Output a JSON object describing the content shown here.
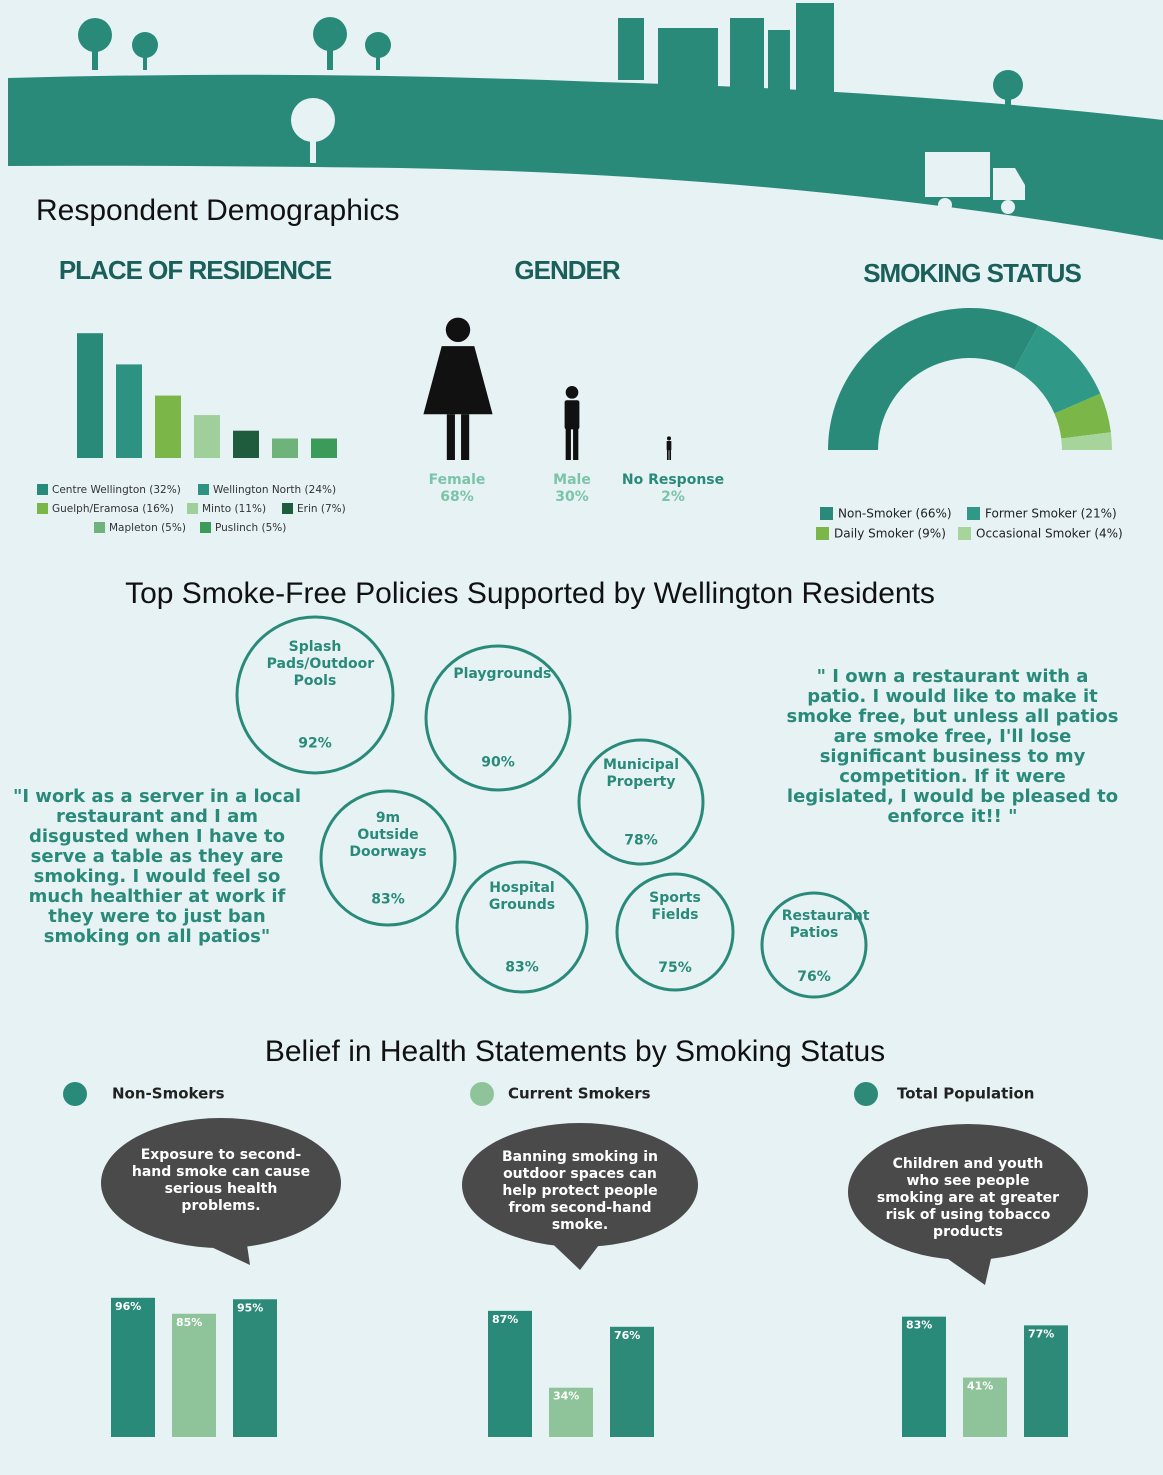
{
  "heading": "Respondent Demographics",
  "quotes": [
    "\"I work as a server in a local restaurant and I am disgusted when I have to serve a table as they are smoking. I would feel so much healthier at work if they were to just ban smoking on all patios\"",
    "\" I own a restaurant with a patio. I would like to make it smoke free, but unless all patios are smoke free, I'll lose significant business to my competition. If it were legislated, I would be pleased to enforce it!! \""
  ],
  "chart_data": [
    {
      "type": "bar",
      "title": "PLACE OF RESIDENCE",
      "categories": [
        "Centre Wellington (32%)",
        "Wellington North (24%)",
        "Guelph/Eramosa (16%)",
        "Minto (11%)",
        "Erin (7%)",
        "Mapleton (5%)",
        "Puslinch (5%)"
      ],
      "values": [
        32,
        24,
        16,
        11,
        7,
        5,
        5
      ],
      "colors": [
        "#2a8a7a",
        "#2e9282",
        "#7ab648",
        "#9fcf9a",
        "#1f5c3e",
        "#6db37a",
        "#3d9b5a"
      ]
    },
    {
      "type": "pictogram",
      "title": "GENDER",
      "categories": [
        "Female",
        "Male",
        "No Response"
      ],
      "values": [
        68,
        30,
        2
      ],
      "value_labels": [
        "68%",
        "30%",
        "2%"
      ],
      "color": "#111111"
    },
    {
      "type": "semidonut",
      "title": "SMOKING STATUS",
      "categories": [
        "Non-Smoker (66%)",
        "Former Smoker (21%)",
        "Daily Smoker (9%)",
        "Occasional Smoker (4%)"
      ],
      "values": [
        66,
        21,
        9,
        4
      ],
      "colors": [
        "#2a8a7a",
        "#2f9886",
        "#7ab648",
        "#a6d49a"
      ]
    },
    {
      "type": "bubbles",
      "title": "Top Smoke-Free Policies Supported by Wellington Residents",
      "categories": [
        "Splash Pads/Outdoor Pools",
        "Playgrounds",
        "Municipal Property",
        "9m Outside Doorways",
        "Hospital Grounds",
        "Sports Fields",
        "Restaurant Patios"
      ],
      "values": [
        92,
        90,
        78,
        83,
        83,
        75,
        76
      ],
      "value_labels": [
        "92%",
        "90%",
        "78%",
        "83%",
        "83%",
        "75%",
        "76%"
      ],
      "color": "#2a8a7a"
    },
    {
      "type": "groupedbar",
      "title": "Belief in Health Statements by Smoking Status",
      "categories": [
        "Exposure to second-hand smoke can cause serious health problems.",
        "Banning smoking in outdoor spaces can help protect people from second-hand smoke.",
        "Children and youth who see people smoking are at greater risk of using tobacco products"
      ],
      "series": [
        {
          "name": "Non-Smokers",
          "color": "#2a8a7a",
          "values": [
            96,
            87,
            83
          ],
          "value_labels": [
            "96%",
            "87%",
            "83%"
          ]
        },
        {
          "name": "Current Smokers",
          "color": "#8fc49a",
          "values": [
            85,
            34,
            41
          ],
          "value_labels": [
            "85%",
            "34%",
            "41%"
          ]
        },
        {
          "name": "Total Population",
          "color": "#2d8a78",
          "values": [
            95,
            76,
            77
          ],
          "value_labels": [
            "95%",
            "76%",
            "77%"
          ]
        }
      ],
      "ylim": [
        0,
        100
      ]
    }
  ]
}
